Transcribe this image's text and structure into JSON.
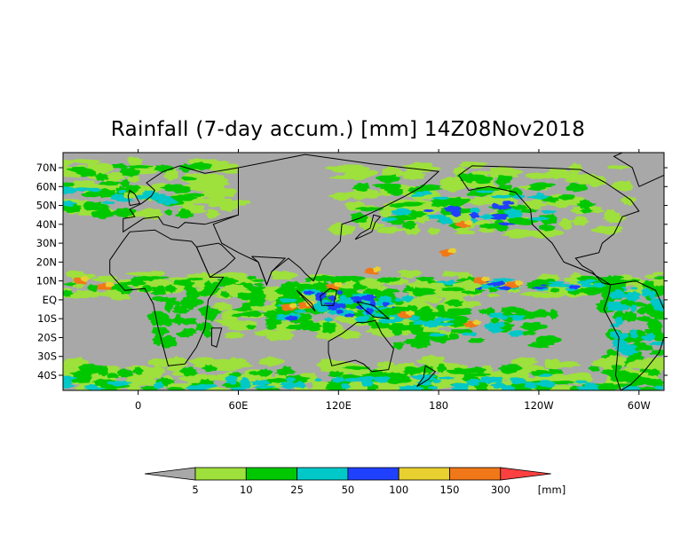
{
  "title": "Rainfall (7-day accum.) [mm] 14Z08Nov2018",
  "map": {
    "projection": "equirectangular",
    "lon_range": [
      -45,
      315
    ],
    "lat_range": [
      -48,
      78
    ],
    "background_color": "#a8a8a8",
    "y_ticks": [
      {
        "lat": 70,
        "label": "70N"
      },
      {
        "lat": 60,
        "label": "60N"
      },
      {
        "lat": 50,
        "label": "50N"
      },
      {
        "lat": 40,
        "label": "40N"
      },
      {
        "lat": 30,
        "label": "30N"
      },
      {
        "lat": 20,
        "label": "20N"
      },
      {
        "lat": 10,
        "label": "10N"
      },
      {
        "lat": 0,
        "label": "EQ"
      },
      {
        "lat": -10,
        "label": "10S"
      },
      {
        "lat": -20,
        "label": "20S"
      },
      {
        "lat": -30,
        "label": "30S"
      },
      {
        "lat": -40,
        "label": "40S"
      }
    ],
    "x_ticks": [
      {
        "lon": 0,
        "label": "0"
      },
      {
        "lon": 60,
        "label": "60E"
      },
      {
        "lon": 120,
        "label": "120E"
      },
      {
        "lon": 180,
        "label": "180"
      },
      {
        "lon": 240,
        "label": "120W"
      },
      {
        "lon": 300,
        "label": "60W"
      }
    ]
  },
  "colorbar": {
    "unit": "[mm]",
    "levels": [
      "5",
      "10",
      "25",
      "50",
      "100",
      "150",
      "300"
    ],
    "colors": [
      "#a8a8a8",
      "#9ee03c",
      "#00c800",
      "#00c8c8",
      "#2040ff",
      "#e8d030",
      "#f07818",
      "#ff4040"
    ]
  }
}
